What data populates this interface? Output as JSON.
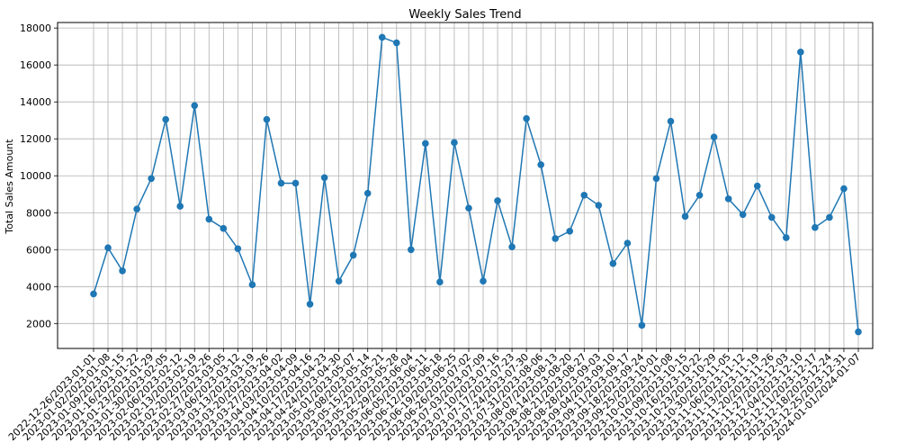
{
  "chart_data": {
    "type": "line",
    "title": "Weekly Sales Trend",
    "xlabel": "",
    "ylabel": "Total Sales Amount",
    "ylim": [
      650,
      18300
    ],
    "yticks": [
      2000,
      4000,
      6000,
      8000,
      10000,
      12000,
      14000,
      16000,
      18000
    ],
    "grid": true,
    "marker": "circle",
    "line_color": "#1f77b4",
    "categories": [
      "2022-12-26/2023-01-01",
      "2023-01-02/2023-01-08",
      "2023-01-09/2023-01-15",
      "2023-01-16/2023-01-22",
      "2023-01-23/2023-01-29",
      "2023-01-30/2023-02-05",
      "2023-02-06/2023-02-12",
      "2023-02-13/2023-02-19",
      "2023-02-20/2023-02-26",
      "2023-02-27/2023-03-05",
      "2023-03-06/2023-03-12",
      "2023-03-13/2023-03-19",
      "2023-03-20/2023-03-26",
      "2023-03-27/2023-04-02",
      "2023-04-03/2023-04-09",
      "2023-04-10/2023-04-16",
      "2023-04-17/2023-04-23",
      "2023-04-24/2023-04-30",
      "2023-05-01/2023-05-07",
      "2023-05-08/2023-05-14",
      "2023-05-15/2023-05-21",
      "2023-05-22/2023-05-28",
      "2023-05-29/2023-06-04",
      "2023-06-05/2023-06-11",
      "2023-06-12/2023-06-18",
      "2023-06-19/2023-06-25",
      "2023-06-26/2023-07-02",
      "2023-07-03/2023-07-09",
      "2023-07-10/2023-07-16",
      "2023-07-17/2023-07-23",
      "2023-07-24/2023-07-30",
      "2023-07-31/2023-08-06",
      "2023-08-07/2023-08-13",
      "2023-08-14/2023-08-20",
      "2023-08-21/2023-08-27",
      "2023-08-28/2023-09-03",
      "2023-09-04/2023-09-10",
      "2023-09-11/2023-09-17",
      "2023-09-18/2023-09-24",
      "2023-09-25/2023-10-01",
      "2023-10-02/2023-10-08",
      "2023-10-09/2023-10-15",
      "2023-10-16/2023-10-22",
      "2023-10-23/2023-10-29",
      "2023-10-30/2023-11-05",
      "2023-11-06/2023-11-12",
      "2023-11-13/2023-11-19",
      "2023-11-20/2023-11-26",
      "2023-11-27/2023-12-03",
      "2023-12-04/2023-12-10",
      "2023-12-11/2023-12-17",
      "2023-12-18/2023-12-24",
      "2023-12-25/2023-12-31",
      "2024-01-01/2024-01-07"
    ],
    "values": [
      3600,
      6100,
      4850,
      8200,
      9850,
      13050,
      8350,
      13800,
      7650,
      7150,
      6050,
      4100,
      13050,
      9600,
      9600,
      3050,
      9900,
      4300,
      5700,
      9050,
      17500,
      17200,
      6000,
      11750,
      4250,
      11800,
      8250,
      4300,
      8650,
      6150,
      13100,
      10600,
      6600,
      7000,
      8950,
      8400,
      5250,
      6350,
      1900,
      9850,
      12950,
      7800,
      8950,
      12100,
      8750,
      7900,
      9450,
      7750,
      6650,
      16700,
      7200,
      7750,
      9300,
      1550
    ]
  }
}
